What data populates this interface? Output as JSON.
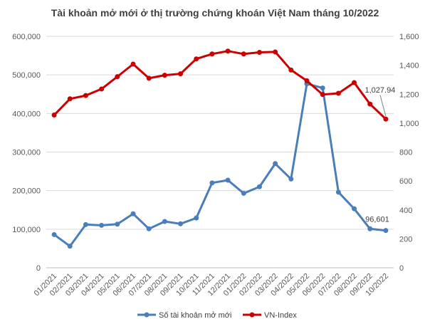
{
  "chart_data": {
    "type": "line",
    "title": "Tài khoản mở mới ở thị trường chứng khoán Việt Nam tháng 10/2022",
    "categories": [
      "01/2021",
      "02/2021",
      "03/2021",
      "04/2021",
      "05/2021",
      "06/2021",
      "07/2021",
      "08/2021",
      "09/2021",
      "10/2021",
      "11/2021",
      "12/2021",
      "01/2022",
      "02/2022",
      "03/2022",
      "04/2022",
      "05/2022",
      "06/2022",
      "07/2022",
      "08/2022",
      "09/2022",
      "10/2022"
    ],
    "series": [
      {
        "name": "Số tài khoản mở mới",
        "axis": "left",
        "color": "#4a7ebb",
        "values": [
          86000,
          56000,
          112000,
          110000,
          113000,
          140000,
          101000,
          120000,
          114000,
          129000,
          220000,
          227000,
          193000,
          210000,
          270000,
          230000,
          477000,
          466000,
          196000,
          153000,
          101000,
          96601
        ]
      },
      {
        "name": "VN-Index",
        "axis": "right",
        "color": "#cc0000",
        "values": [
          1056,
          1168,
          1191,
          1236,
          1321,
          1408,
          1310,
          1331,
          1341,
          1444,
          1478,
          1498,
          1478,
          1489,
          1492,
          1367,
          1293,
          1198,
          1206,
          1280,
          1132,
          1027.94
        ]
      }
    ],
    "data_labels": {
      "left_last": "96,601",
      "right_last": "1,027.94"
    },
    "y_left": {
      "min": 0,
      "max": 600000,
      "ticks": [
        "0",
        "100,000",
        "200,000",
        "300,000",
        "400,000",
        "500,000",
        "600,000"
      ]
    },
    "y_right": {
      "min": 0,
      "max": 1600,
      "ticks": [
        "0",
        "200",
        "400",
        "600",
        "800",
        "1,000",
        "1,200",
        "1,400",
        "1,600"
      ]
    },
    "grid": true,
    "legend": {
      "position": "bottom",
      "entries": [
        "Số tài khoản mở mới",
        "VN-Index"
      ]
    }
  }
}
